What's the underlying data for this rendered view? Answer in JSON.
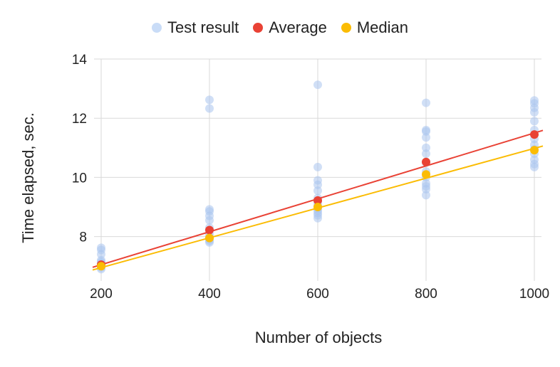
{
  "chart_data": {
    "type": "scatter",
    "xlabel": "Number of objects",
    "ylabel": "Time elapsed, sec.",
    "xlim": [
      200,
      1000
    ],
    "ylim": [
      6.5,
      14
    ],
    "xticks": [
      "200",
      "400",
      "600",
      "800",
      "1000"
    ],
    "yticks": [
      "8",
      "10",
      "12",
      "14"
    ],
    "grid": true,
    "legend_position": "top-center",
    "series": [
      {
        "name": "Test result",
        "color": "#aac4ee",
        "points": [
          [
            200,
            6.9
          ],
          [
            200,
            6.95
          ],
          [
            200,
            7.0
          ],
          [
            200,
            7.05
          ],
          [
            200,
            7.1
          ],
          [
            200,
            7.15
          ],
          [
            200,
            7.2
          ],
          [
            200,
            7.4
          ],
          [
            200,
            7.55
          ],
          [
            200,
            7.62
          ],
          [
            400,
            7.8
          ],
          [
            400,
            7.85
          ],
          [
            400,
            7.9
          ],
          [
            400,
            7.95
          ],
          [
            400,
            8.0
          ],
          [
            400,
            8.1
          ],
          [
            400,
            8.3
          ],
          [
            400,
            8.55
          ],
          [
            400,
            8.7
          ],
          [
            400,
            8.85
          ],
          [
            400,
            8.92
          ],
          [
            400,
            12.33
          ],
          [
            400,
            12.62
          ],
          [
            600,
            8.62
          ],
          [
            600,
            8.72
          ],
          [
            600,
            8.8
          ],
          [
            600,
            8.88
          ],
          [
            600,
            8.95
          ],
          [
            600,
            9.05
          ],
          [
            600,
            9.15
          ],
          [
            600,
            9.3
          ],
          [
            600,
            9.55
          ],
          [
            600,
            9.75
          ],
          [
            600,
            9.9
          ],
          [
            600,
            10.35
          ],
          [
            600,
            13.13
          ],
          [
            800,
            9.4
          ],
          [
            800,
            9.6
          ],
          [
            800,
            9.7
          ],
          [
            800,
            9.8
          ],
          [
            800,
            10.0
          ],
          [
            800,
            10.2
          ],
          [
            800,
            10.5
          ],
          [
            800,
            10.8
          ],
          [
            800,
            11.0
          ],
          [
            800,
            11.35
          ],
          [
            800,
            11.55
          ],
          [
            800,
            11.6
          ],
          [
            800,
            12.52
          ],
          [
            1000,
            10.35
          ],
          [
            1000,
            10.45
          ],
          [
            1000,
            10.6
          ],
          [
            1000,
            10.8
          ],
          [
            1000,
            10.95
          ],
          [
            1000,
            11.1
          ],
          [
            1000,
            11.3
          ],
          [
            1000,
            11.6
          ],
          [
            1000,
            11.9
          ],
          [
            1000,
            12.2
          ],
          [
            1000,
            12.35
          ],
          [
            1000,
            12.5
          ],
          [
            1000,
            12.6
          ]
        ]
      },
      {
        "name": "Average",
        "color": "#e94235",
        "points": [
          [
            200,
            7.05
          ],
          [
            400,
            8.22
          ],
          [
            600,
            9.22
          ],
          [
            800,
            10.52
          ],
          [
            1000,
            11.45
          ]
        ],
        "trendline": [
          [
            200,
            7.05
          ],
          [
            1000,
            11.5
          ]
        ]
      },
      {
        "name": "Median",
        "color": "#fbbc04",
        "points": [
          [
            200,
            7.0
          ],
          [
            400,
            7.95
          ],
          [
            600,
            9.0
          ],
          [
            800,
            10.1
          ],
          [
            1000,
            10.92
          ]
        ],
        "trendline": [
          [
            200,
            6.95
          ],
          [
            1000,
            10.98
          ]
        ]
      }
    ]
  }
}
